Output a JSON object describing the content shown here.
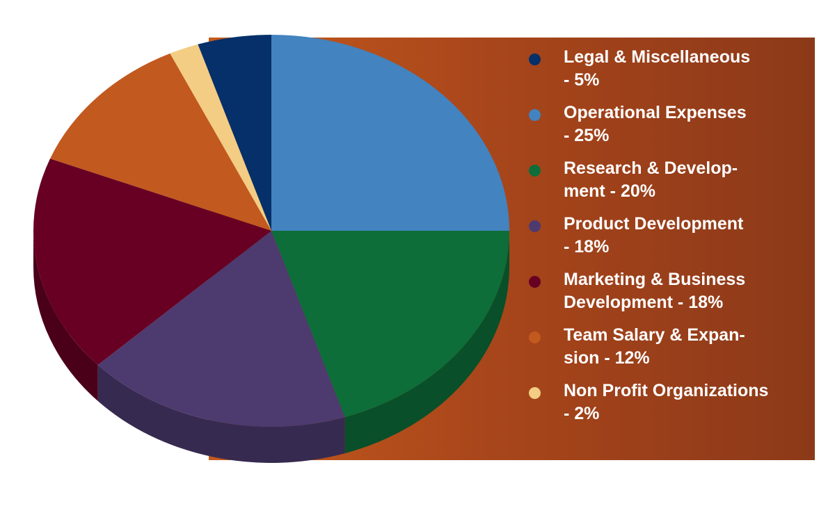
{
  "chart_data": {
    "type": "pie",
    "title": "",
    "slices": [
      {
        "label": "Legal & Miscellaneous\n- 5%",
        "value": 5,
        "color": "#05306a"
      },
      {
        "label": "Operational Expenses\n- 25%",
        "value": 25,
        "color": "#4283c0"
      },
      {
        "label": "Research & Develop-\nment - 20%",
        "value": 20,
        "color": "#0d6e39"
      },
      {
        "label": "Product Development\n- 18%",
        "value": 18,
        "color": "#4d3a6f"
      },
      {
        "label": "Marketing & Business\nDevelopment - 18%",
        "value": 18,
        "color": "#670022"
      },
      {
        "label": "Team Salary & Expan-\nsion - 12%",
        "value": 12,
        "color": "#c2591f"
      },
      {
        "label": "Non Profit Organizations\n- 2%",
        "value": 2,
        "color": "#f3cd84"
      }
    ],
    "legend_position": "right",
    "style": "3d-pie"
  }
}
